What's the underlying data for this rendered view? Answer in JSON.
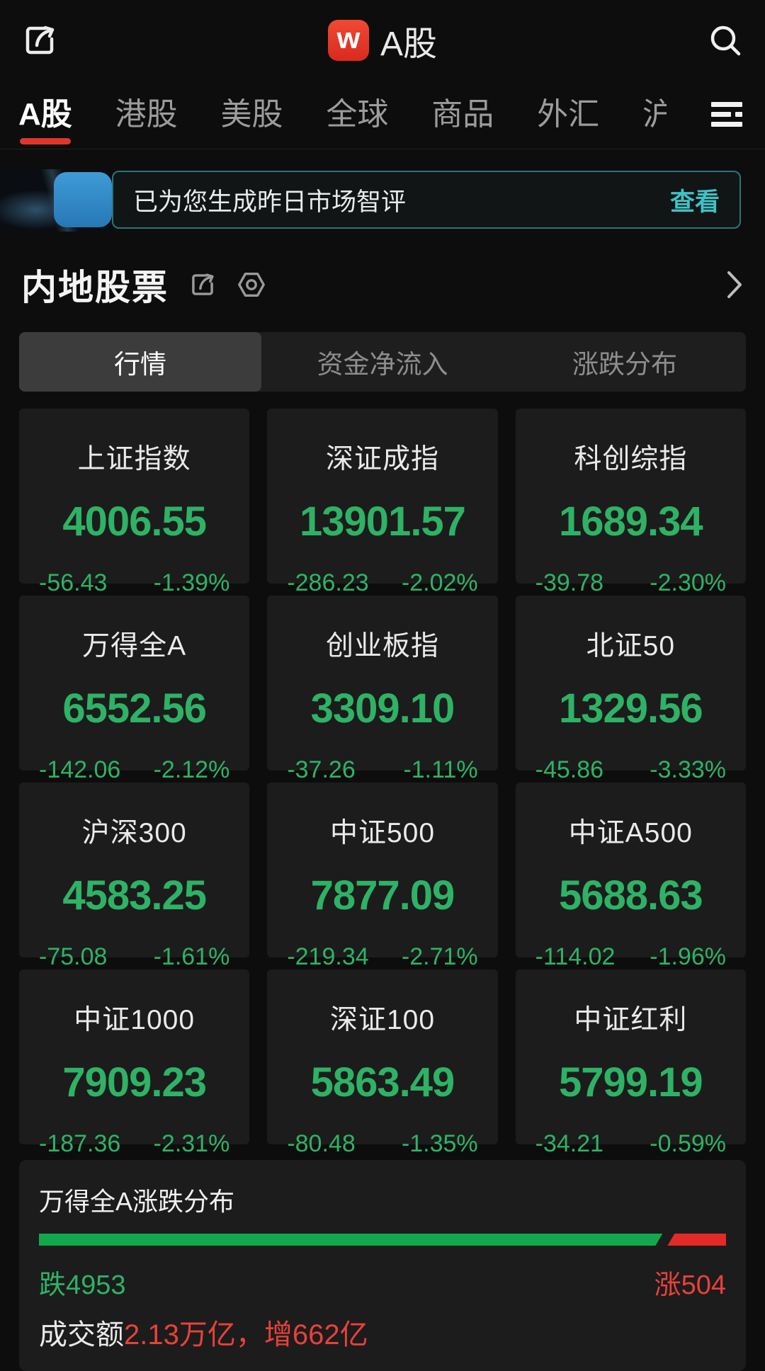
{
  "header": {
    "logo_letter": "w",
    "title": "A股"
  },
  "market_tabs": [
    {
      "label": "A股",
      "active": true,
      "partial": false
    },
    {
      "label": "港股",
      "active": false,
      "partial": false
    },
    {
      "label": "美股",
      "active": false,
      "partial": false
    },
    {
      "label": "全球",
      "active": false,
      "partial": false
    },
    {
      "label": "商品",
      "active": false,
      "partial": false
    },
    {
      "label": "外汇",
      "active": false,
      "partial": false
    },
    {
      "label": "沪",
      "active": false,
      "partial": true
    }
  ],
  "banner": {
    "message": "已为您生成昨日市场智评",
    "action_label": "查看"
  },
  "section": {
    "title": "内地股票"
  },
  "sub_tabs": [
    {
      "label": "行情",
      "active": true
    },
    {
      "label": "资金净流入",
      "active": false
    },
    {
      "label": "涨跌分布",
      "active": false
    }
  ],
  "indices": [
    {
      "name": "上证指数",
      "last": "4006.55",
      "change": "-56.43",
      "pct": "-1.39%"
    },
    {
      "name": "深证成指",
      "last": "13901.57",
      "change": "-286.23",
      "pct": "-2.02%"
    },
    {
      "name": "科创综指",
      "last": "1689.34",
      "change": "-39.78",
      "pct": "-2.30%"
    },
    {
      "name": "万得全A",
      "last": "6552.56",
      "change": "-142.06",
      "pct": "-2.12%"
    },
    {
      "name": "创业板指",
      "last": "3309.10",
      "change": "-37.26",
      "pct": "-1.11%"
    },
    {
      "name": "北证50",
      "last": "1329.56",
      "change": "-45.86",
      "pct": "-3.33%"
    },
    {
      "name": "沪深300",
      "last": "4583.25",
      "change": "-75.08",
      "pct": "-1.61%"
    },
    {
      "name": "中证500",
      "last": "7877.09",
      "change": "-219.34",
      "pct": "-2.71%"
    },
    {
      "name": "中证A500",
      "last": "5688.63",
      "change": "-114.02",
      "pct": "-1.96%"
    },
    {
      "name": "中证1000",
      "last": "7909.23",
      "change": "-187.36",
      "pct": "-2.31%"
    },
    {
      "name": "深证100",
      "last": "5863.49",
      "change": "-80.48",
      "pct": "-1.35%"
    },
    {
      "name": "中证红利",
      "last": "5799.19",
      "change": "-34.21",
      "pct": "-0.59%"
    }
  ],
  "distribution": {
    "title": "万得全A涨跌分布",
    "down_count": 4953,
    "up_count": 504,
    "down_label": "跌4953",
    "up_label": "涨504",
    "turnover_prefix": "成交额",
    "turnover_value": "2.13万亿，增662亿"
  },
  "chart_data": {
    "type": "bar",
    "title": "万得全A涨跌分布",
    "categories": [
      "跌(下跌家数)",
      "涨(上涨家数)"
    ],
    "values": [
      4953,
      504
    ],
    "annotations": [
      "成交额2.13万亿，增662亿"
    ],
    "colors": {
      "down": "#14a84e",
      "up": "#e32a28"
    }
  },
  "colors": {
    "page_bg": "#0d0d0d",
    "card_bg": "#1c1c1c",
    "green_text": "#2eb265",
    "red_text": "#e8413b",
    "accent_red": "#e0352a",
    "cyan_link": "#3fc3c5"
  }
}
